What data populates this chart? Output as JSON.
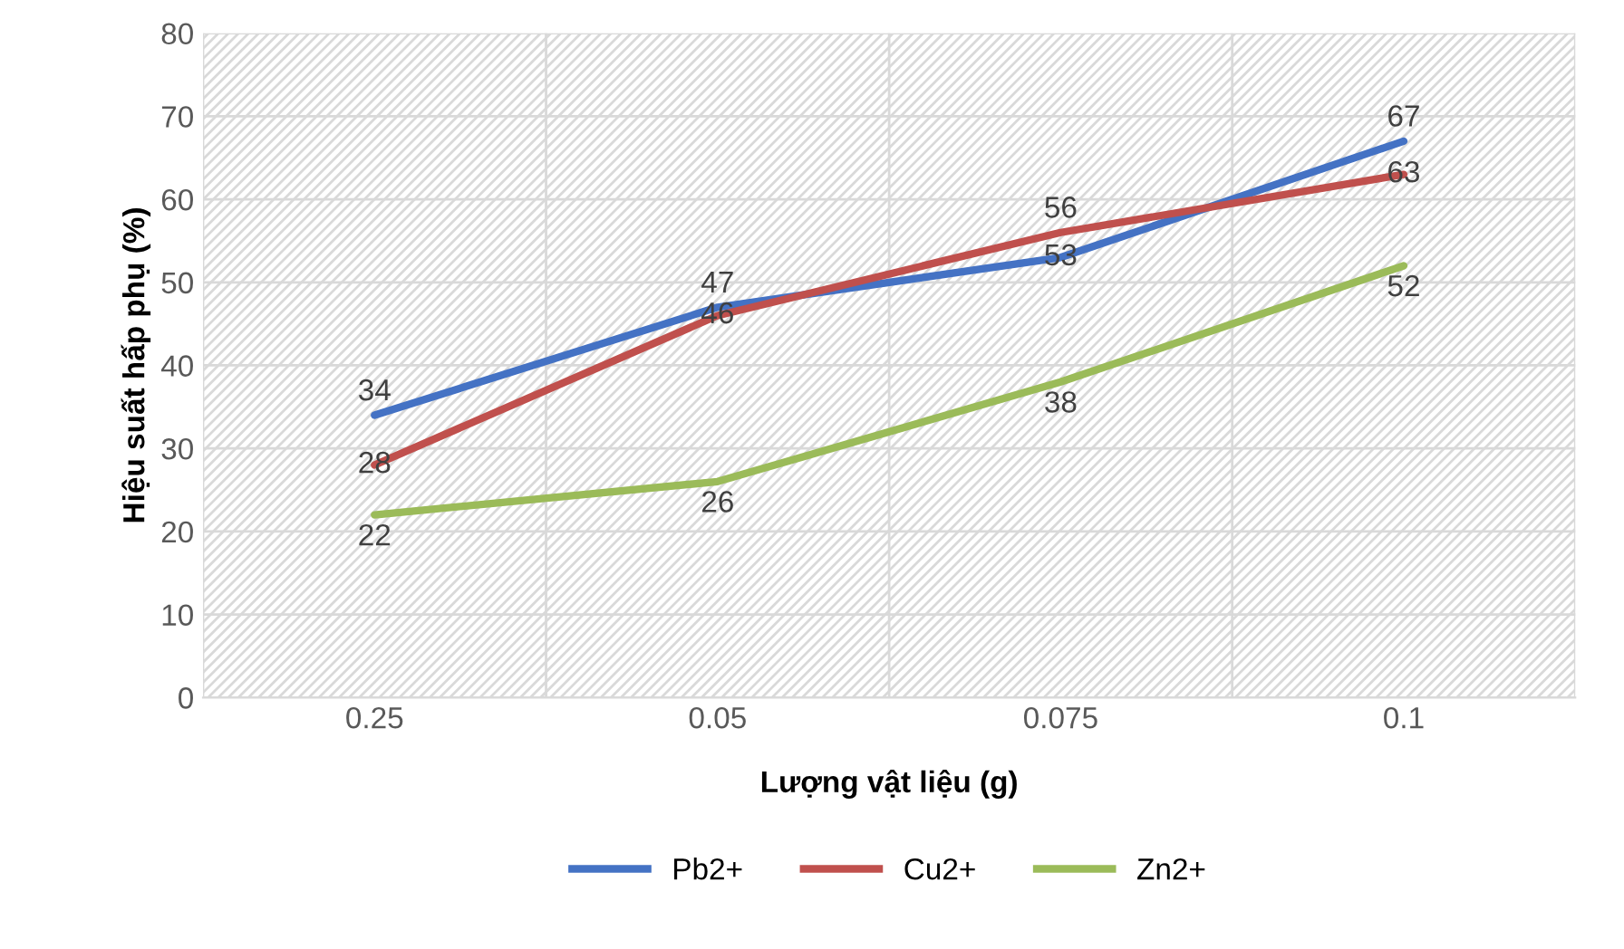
{
  "chart_data": {
    "type": "line",
    "xlabel": "Lượng vật liệu (g)",
    "ylabel": "Hiệu suất hấp phụ (%)",
    "categories": [
      "0.25",
      "0.05",
      "0.075",
      "0.1"
    ],
    "series": [
      {
        "name": "Pb2+",
        "color": "#4472c4",
        "values": [
          34,
          47,
          53,
          67
        ]
      },
      {
        "name": "Cu2+",
        "color": "#c0504d",
        "values": [
          28,
          46,
          56,
          63
        ]
      },
      {
        "name": "Zn2+",
        "color": "#9bbb59",
        "values": [
          22,
          26,
          38,
          52
        ]
      }
    ],
    "ylim": [
      0,
      80
    ],
    "yticks": [
      0,
      10,
      20,
      30,
      40,
      50,
      60,
      70,
      80
    ],
    "grid": true,
    "legend": "bottom",
    "data_labels": true,
    "marker": "none",
    "line_style": "solid"
  }
}
